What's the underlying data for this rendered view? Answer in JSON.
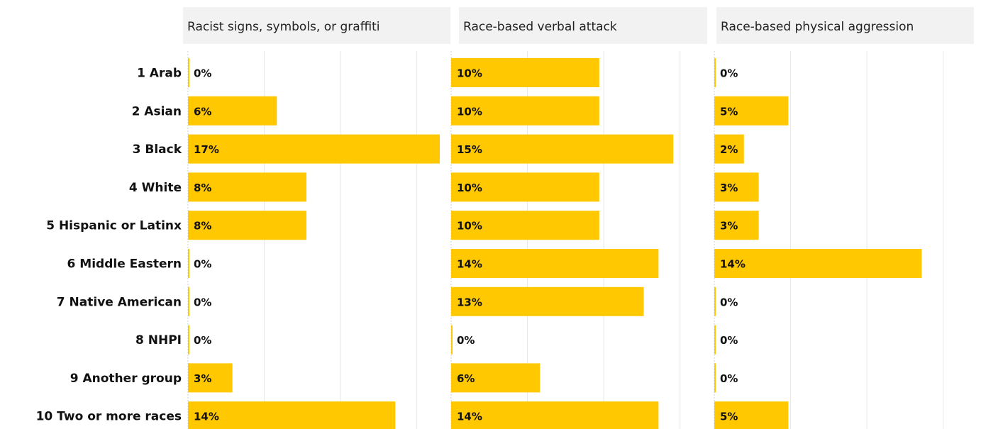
{
  "chart_data": {
    "type": "bar",
    "orientation": "horizontal",
    "layout": "small-multiples",
    "categories": [
      "1 Arab",
      "2 Asian",
      "3 Black",
      "4 White",
      "5 Hispanic or Latinx",
      "6 Middle Eastern",
      "7 Native American",
      "8 NHPI",
      "9 Another group",
      "10 Two or more races"
    ],
    "series": [
      {
        "name": "Racist signs, symbols, or graffiti",
        "values": [
          0,
          6,
          17,
          8,
          8,
          0,
          0,
          0,
          3,
          14
        ],
        "labels": [
          "0%",
          "6%",
          "17%",
          "8%",
          "8%",
          "0%",
          "0%",
          "0%",
          "3%",
          "14%"
        ]
      },
      {
        "name": "Race-based verbal attack",
        "values": [
          10,
          10,
          15,
          10,
          10,
          14,
          13,
          0,
          6,
          14
        ],
        "labels": [
          "10%",
          "10%",
          "15%",
          "10%",
          "10%",
          "14%",
          "13%",
          "0%",
          "6%",
          "14%"
        ]
      },
      {
        "name": "Race-based physical aggression",
        "values": [
          0,
          5,
          2,
          3,
          3,
          14,
          0,
          0,
          0,
          5
        ],
        "labels": [
          "0%",
          "5%",
          "2%",
          "3%",
          "3%",
          "14%",
          "0%",
          "0%",
          "0%",
          "5%"
        ]
      }
    ],
    "bar_color": "#FFC800",
    "grid": true,
    "value_unit": "%",
    "xlim": [
      0,
      17
    ]
  }
}
